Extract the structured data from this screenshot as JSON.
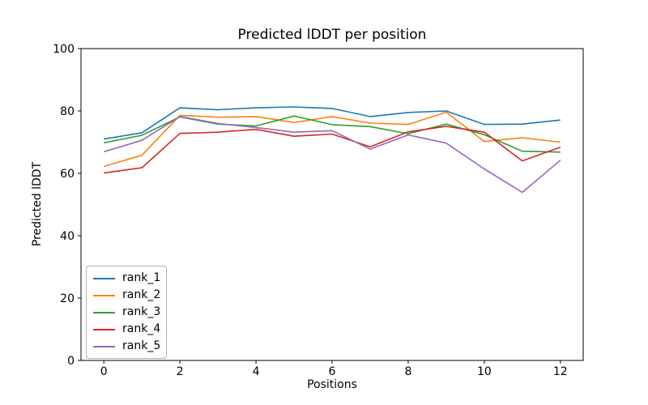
{
  "chart_data": {
    "type": "line",
    "title": "Predicted lDDT per position",
    "xlabel": "Positions",
    "ylabel": "Predicted lDDT",
    "x": [
      0,
      1,
      2,
      3,
      4,
      5,
      6,
      7,
      8,
      9,
      10,
      11,
      12
    ],
    "xlim": [
      -0.6,
      12.6
    ],
    "ylim": [
      0,
      100
    ],
    "xticks": [
      0,
      2,
      4,
      6,
      8,
      10,
      12
    ],
    "yticks": [
      0,
      20,
      40,
      60,
      80,
      100
    ],
    "grid": false,
    "legend_position": "lower-left",
    "axis_color": "#000000",
    "background_color": "#ffffff",
    "series": [
      {
        "name": "rank_1",
        "color": "#1f77b4",
        "values": [
          71.0,
          73.0,
          81.0,
          80.4,
          81.0,
          81.3,
          80.8,
          78.2,
          79.5,
          80.0,
          75.7,
          75.8,
          77.1
        ]
      },
      {
        "name": "rank_2",
        "color": "#ff7f0e",
        "values": [
          62.2,
          65.8,
          78.6,
          78.0,
          78.2,
          76.3,
          78.2,
          76.1,
          75.7,
          79.6,
          70.2,
          71.4,
          70.0
        ]
      },
      {
        "name": "rank_3",
        "color": "#2ca02c",
        "values": [
          69.8,
          72.2,
          78.1,
          75.8,
          75.2,
          78.4,
          75.6,
          75.0,
          72.7,
          75.8,
          72.4,
          67.1,
          66.8
        ]
      },
      {
        "name": "rank_4",
        "color": "#d62728",
        "values": [
          60.1,
          61.8,
          72.8,
          73.2,
          74.1,
          71.9,
          72.6,
          68.5,
          73.3,
          75.1,
          73.2,
          64.0,
          68.4
        ]
      },
      {
        "name": "rank_5",
        "color": "#9467bd",
        "values": [
          66.9,
          70.6,
          78.2,
          76.0,
          74.7,
          73.2,
          73.7,
          67.8,
          72.3,
          69.7,
          61.4,
          53.9,
          64.2
        ]
      }
    ]
  }
}
